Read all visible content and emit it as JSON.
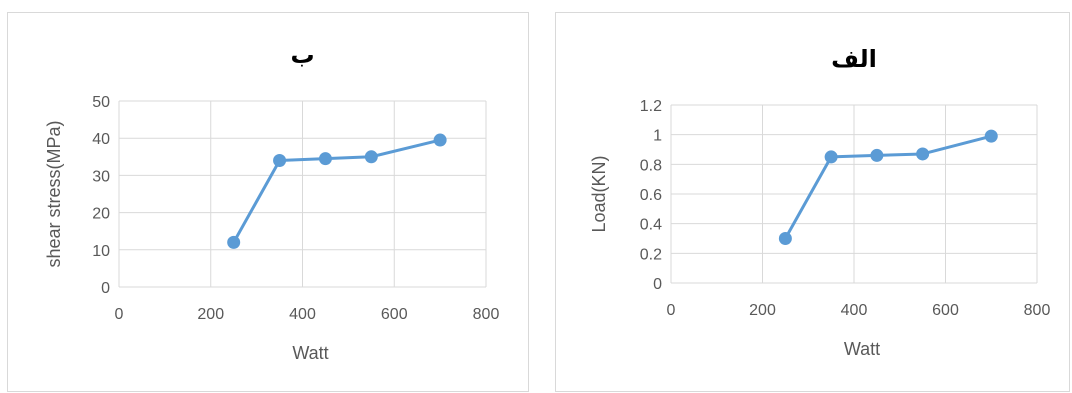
{
  "chart_data": [
    {
      "type": "scatter",
      "title": "ب",
      "xlabel": "Watt",
      "ylabel": "shear stress(MPa)",
      "xlim": [
        0,
        800
      ],
      "ylim": [
        0,
        50
      ],
      "xticks": [
        0,
        200,
        400,
        600,
        800
      ],
      "yticks": [
        0,
        10,
        20,
        30,
        40,
        50
      ],
      "grid": true,
      "legend": "none",
      "series": [
        {
          "x": [
            250,
            350,
            450,
            550,
            700
          ],
          "y": [
            12,
            34,
            34.5,
            35,
            39.5
          ],
          "color": "#5b9bd5"
        }
      ]
    },
    {
      "type": "scatter",
      "title": "الف",
      "xlabel": "Watt",
      "ylabel": "Load(KN)",
      "xlim": [
        0,
        800
      ],
      "ylim": [
        0,
        1.2
      ],
      "xticks": [
        0,
        200,
        400,
        600,
        800
      ],
      "yticks": [
        0,
        0.2,
        0.4,
        0.6,
        0.8,
        1,
        1.2
      ],
      "grid": true,
      "legend": "none",
      "series": [
        {
          "x": [
            250,
            350,
            450,
            550,
            700
          ],
          "y": [
            0.3,
            0.85,
            0.86,
            0.87,
            0.99
          ],
          "color": "#5b9bd5"
        }
      ]
    }
  ]
}
